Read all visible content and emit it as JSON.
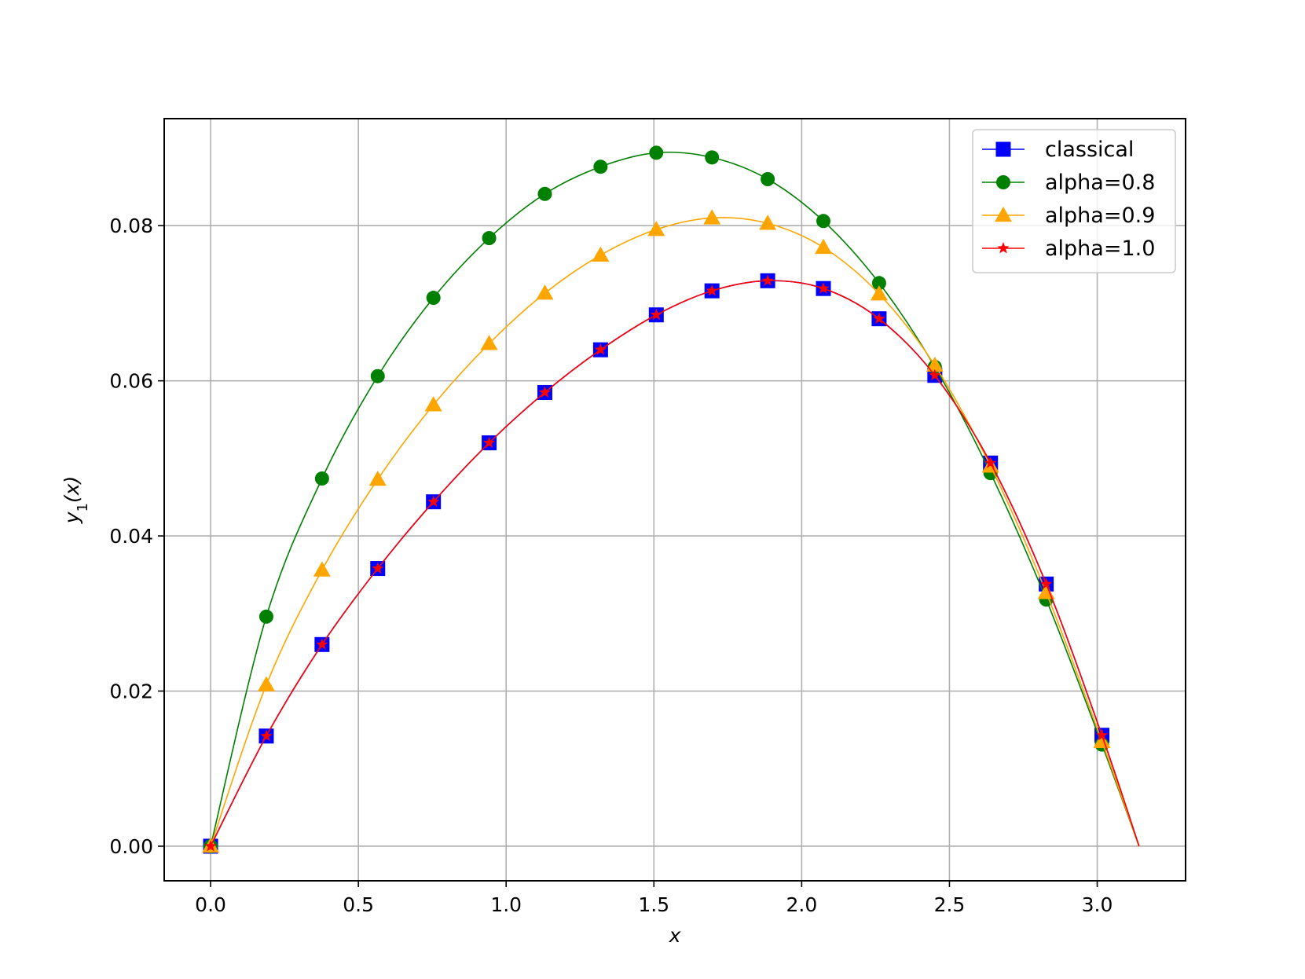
{
  "chart_data": {
    "type": "line",
    "xlabel": "x",
    "ylabel": "y1(x)",
    "xlim": [
      -0.157,
      3.299
    ],
    "ylim": [
      -0.00446,
      0.0938
    ],
    "xticks": [
      "0.0",
      "0.5",
      "1.0",
      "1.5",
      "2.0",
      "2.5",
      "3.0"
    ],
    "yticks": [
      "0.00",
      "0.02",
      "0.04",
      "0.06",
      "0.08"
    ],
    "grid": true,
    "legend_position": "top-right",
    "series": [
      {
        "name": "classical",
        "color": "#0000ff",
        "marker": "square",
        "x": [
          0.0,
          0.1885,
          0.377,
          0.5655,
          0.754,
          0.9425,
          1.131,
          1.3195,
          1.508,
          1.6965,
          1.885,
          2.0735,
          2.262,
          2.4505,
          2.639,
          2.8275,
          3.016
        ],
        "y": [
          0.0,
          0.0142,
          0.026,
          0.0358,
          0.0444,
          0.052,
          0.0585,
          0.064,
          0.0685,
          0.0716,
          0.0729,
          0.0719,
          0.068,
          0.0607,
          0.0494,
          0.0338,
          0.0143
        ],
        "curve_end": [
          3.1416,
          0.0
        ]
      },
      {
        "name": "alpha=0.8",
        "color": "#008000",
        "marker": "circle",
        "x": [
          0.0,
          0.1885,
          0.377,
          0.5655,
          0.754,
          0.9425,
          1.131,
          1.3195,
          1.508,
          1.6965,
          1.885,
          2.0735,
          2.262,
          2.4505,
          2.639,
          2.8275,
          3.016
        ],
        "y": [
          0.0,
          0.0296,
          0.0474,
          0.0606,
          0.0707,
          0.0784,
          0.0841,
          0.0876,
          0.0894,
          0.0888,
          0.086,
          0.0806,
          0.0726,
          0.0618,
          0.0481,
          0.0318,
          0.0131
        ],
        "curve_end": [
          3.1416,
          0.0
        ]
      },
      {
        "name": "alpha=0.9",
        "color": "#ffa500",
        "marker": "triangle",
        "x": [
          0.0,
          0.1885,
          0.377,
          0.5655,
          0.754,
          0.9425,
          1.131,
          1.3195,
          1.508,
          1.6965,
          1.885,
          2.0735,
          2.262,
          2.4505,
          2.639,
          2.8275,
          3.016
        ],
        "y": [
          0.0,
          0.0208,
          0.0356,
          0.0473,
          0.0569,
          0.0648,
          0.0713,
          0.0762,
          0.0795,
          0.081,
          0.0803,
          0.0772,
          0.0712,
          0.062,
          0.049,
          0.0327,
          0.0135
        ],
        "curve_end": [
          3.1416,
          0.0
        ]
      },
      {
        "name": "alpha=1.0",
        "color": "#ff0000",
        "marker": "star",
        "x": [
          0.0,
          0.1885,
          0.377,
          0.5655,
          0.754,
          0.9425,
          1.131,
          1.3195,
          1.508,
          1.6965,
          1.885,
          2.0735,
          2.262,
          2.4505,
          2.639,
          2.8275,
          3.016
        ],
        "y": [
          0.0,
          0.0142,
          0.026,
          0.0358,
          0.0444,
          0.052,
          0.0585,
          0.064,
          0.0685,
          0.0716,
          0.0729,
          0.0719,
          0.068,
          0.0607,
          0.0494,
          0.0338,
          0.0143
        ],
        "curve_end": [
          3.1416,
          0.0
        ]
      }
    ]
  }
}
